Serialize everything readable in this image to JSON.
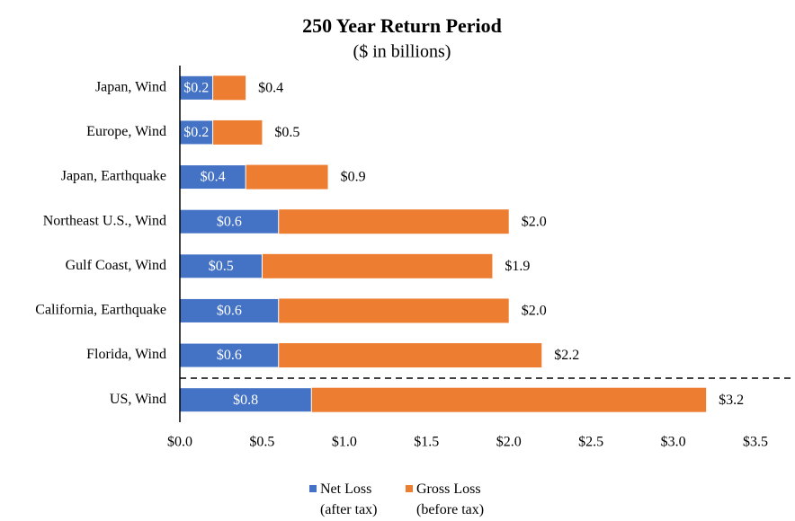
{
  "chart_data": {
    "type": "bar",
    "orientation": "horizontal",
    "title": "250 Year Return Period",
    "subtitle": "($ in billions)",
    "categories": [
      "Japan, Wind",
      "Europe, Wind",
      "Japan, Earthquake",
      "Northeast U.S., Wind",
      "Gulf Coast, Wind",
      "California, Earthquake",
      "Florida, Wind",
      "US, Wind"
    ],
    "series": [
      {
        "name": "Gross Loss (before tax)",
        "color": "#ed7d31",
        "values": [
          0.4,
          0.5,
          0.9,
          2.0,
          1.9,
          2.0,
          2.2,
          3.2
        ],
        "value_labels": [
          "$0.4",
          "$0.5",
          "$0.9",
          "$2.0",
          "$1.9",
          "$2.0",
          "$2.2",
          "$3.2"
        ]
      },
      {
        "name": "Net Loss (after tax)",
        "color": "#4472c4",
        "values": [
          0.2,
          0.2,
          0.4,
          0.6,
          0.5,
          0.6,
          0.6,
          0.8
        ],
        "value_labels": [
          "$0.2",
          "$0.2",
          "$0.4",
          "$0.6",
          "$0.5",
          "$0.6",
          "$0.6",
          "$0.8"
        ]
      }
    ],
    "xlim": [
      0,
      3.5
    ],
    "xticks": [
      {
        "value": 0,
        "label": "$0.0"
      },
      {
        "value": 0.5,
        "label": "$0.5"
      },
      {
        "value": 1,
        "label": "$1.0"
      },
      {
        "value": 1.5,
        "label": "$1.5"
      },
      {
        "value": 2,
        "label": "$2.0"
      },
      {
        "value": 2.5,
        "label": "$2.5"
      },
      {
        "value": 3,
        "label": "$3.0"
      },
      {
        "value": 3.5,
        "label": "$3.5"
      }
    ],
    "grid": false
  }
}
